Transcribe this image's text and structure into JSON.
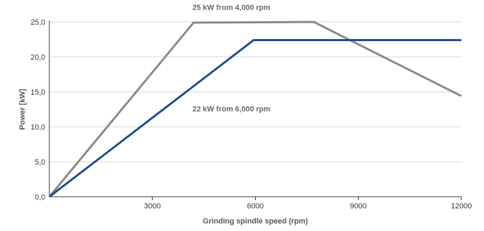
{
  "chart_data": {
    "type": "line",
    "title": "",
    "xlabel": "Grinding spindle speed (rpm)",
    "ylabel": "Power [kW]",
    "xlim": [
      0,
      12000
    ],
    "ylim": [
      0,
      25
    ],
    "x_ticks": [
      3000,
      6000,
      9000,
      12000
    ],
    "x_tick_labels": [
      "3000",
      "6000",
      "9000",
      "12000"
    ],
    "y_ticks": [
      0,
      5,
      10,
      15,
      20,
      25
    ],
    "y_tick_labels": [
      "0,0",
      "5,0",
      "10,0",
      "15,0",
      "20,0",
      "25,0"
    ],
    "grid": "horizontal",
    "legend": "none",
    "series": [
      {
        "color": "#888888",
        "points": [
          [
            0,
            0
          ],
          [
            4200,
            24.9
          ],
          [
            7700,
            25.0
          ],
          [
            12000,
            14.4
          ]
        ]
      },
      {
        "color": "#1b4f8c",
        "points": [
          [
            0,
            0
          ],
          [
            5950,
            22.4
          ],
          [
            12000,
            22.4
          ]
        ]
      }
    ],
    "annotations": [
      {
        "text": "25 kW from 4,000 rpm",
        "x": 5300,
        "y": 26.7
      },
      {
        "text": "22 kW from 6,000 rpm",
        "x": 5300,
        "y": 12.2
      }
    ]
  }
}
